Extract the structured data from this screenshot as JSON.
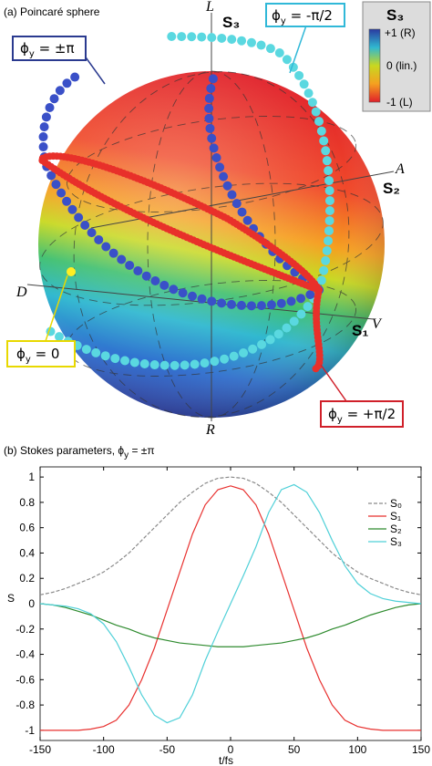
{
  "sphere": {
    "title": "(a) Poincaré sphere",
    "axis_labels": {
      "L": "L",
      "R": "R",
      "A": "A",
      "D": "D",
      "V": "V",
      "S1": "S₁",
      "S2": "S₂",
      "S3": "S₃"
    },
    "colorbar": {
      "title": "S₃",
      "top": "+1 (R)",
      "middle": "0 (lin.)",
      "bottom": "-1 (L)"
    },
    "annotations": [
      {
        "symbol": "ϕ",
        "sub": "y",
        "tail": " = ±π"
      },
      {
        "symbol": "ϕ",
        "sub": "y",
        "tail": " = -π/2"
      },
      {
        "symbol": "ϕ",
        "sub": "y",
        "tail": " = 0"
      },
      {
        "symbol": "ϕ",
        "sub": "y",
        "tail": " = +π/2"
      }
    ]
  },
  "chart_data": {
    "type": "line",
    "title": {
      "text": "(b) Stokes parameters, ϕ",
      "sub": "y",
      "tail": " = ±π"
    },
    "x_label": "t/fs",
    "y_label": "S",
    "x": [
      -150,
      -140,
      -130,
      -120,
      -110,
      -100,
      -90,
      -80,
      -70,
      -60,
      -50,
      -40,
      -30,
      -20,
      -10,
      0,
      10,
      20,
      30,
      40,
      50,
      60,
      70,
      80,
      90,
      100,
      110,
      120,
      130,
      140,
      150
    ],
    "series": [
      {
        "name": "S₀",
        "color": "#8a8a8a",
        "style": "dashed",
        "values": [
          0.07,
          0.09,
          0.12,
          0.16,
          0.2,
          0.25,
          0.32,
          0.4,
          0.5,
          0.6,
          0.7,
          0.8,
          0.88,
          0.95,
          0.99,
          1,
          0.99,
          0.95,
          0.88,
          0.8,
          0.7,
          0.6,
          0.5,
          0.4,
          0.32,
          0.25,
          0.2,
          0.16,
          0.12,
          0.09,
          0.07
        ]
      },
      {
        "name": "S₁",
        "color": "#e8312f",
        "style": "solid",
        "values": [
          -1,
          -1,
          -1,
          -1,
          -0.99,
          -0.97,
          -0.92,
          -0.8,
          -0.6,
          -0.35,
          -0.05,
          0.25,
          0.55,
          0.78,
          0.9,
          0.93,
          0.9,
          0.78,
          0.55,
          0.25,
          -0.05,
          -0.35,
          -0.6,
          -0.8,
          -0.92,
          -0.97,
          -0.99,
          -1,
          -1,
          -1,
          -1
        ]
      },
      {
        "name": "S₂",
        "color": "#2e8b2e",
        "style": "solid",
        "values": [
          0,
          -0.01,
          -0.03,
          -0.06,
          -0.09,
          -0.13,
          -0.17,
          -0.2,
          -0.24,
          -0.27,
          -0.29,
          -0.31,
          -0.32,
          -0.33,
          -0.34,
          -0.34,
          -0.34,
          -0.33,
          -0.32,
          -0.31,
          -0.29,
          -0.27,
          -0.24,
          -0.2,
          -0.17,
          -0.13,
          -0.09,
          -0.06,
          -0.03,
          -0.01,
          0
        ]
      },
      {
        "name": "S₃",
        "color": "#4fd0d8",
        "style": "solid",
        "values": [
          0,
          -0.01,
          -0.02,
          -0.04,
          -0.08,
          -0.16,
          -0.3,
          -0.5,
          -0.72,
          -0.88,
          -0.94,
          -0.9,
          -0.72,
          -0.45,
          -0.22,
          0,
          0.22,
          0.45,
          0.72,
          0.9,
          0.94,
          0.88,
          0.72,
          0.5,
          0.3,
          0.16,
          0.08,
          0.04,
          0.02,
          0.01,
          0
        ]
      }
    ],
    "xlim": [
      -150,
      150
    ],
    "xticks": [
      -150,
      -100,
      -50,
      0,
      50,
      100,
      150
    ],
    "ylim": [
      -1.08,
      1.08
    ],
    "yticks": [
      -1,
      -0.8,
      -0.6,
      -0.4,
      -0.2,
      0,
      0.2,
      0.4,
      0.6,
      0.8,
      1
    ],
    "legend": "upper right"
  }
}
